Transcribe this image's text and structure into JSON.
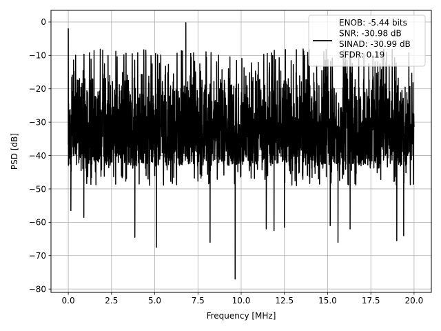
{
  "chart_data": {
    "type": "line",
    "title": "",
    "xlabel": "Frequency [MHz]",
    "ylabel": "PSD [dB]",
    "xlim": [
      -1.0,
      21.0
    ],
    "ylim": [
      -81.0,
      3.5
    ],
    "xticks": [
      0.0,
      2.5,
      5.0,
      7.5,
      10.0,
      12.5,
      15.0,
      17.5,
      20.0
    ],
    "xtick_labels": [
      "0.0",
      "2.5",
      "5.0",
      "7.5",
      "10.0",
      "12.5",
      "15.0",
      "17.5",
      "20.0"
    ],
    "yticks": [
      0,
      -10,
      -20,
      -30,
      -40,
      -50,
      -60,
      -70,
      -80
    ],
    "ytick_labels": [
      "0",
      "−10",
      "−20",
      "−30",
      "−40",
      "−50",
      "−60",
      "−70",
      "−80"
    ],
    "grid": true,
    "legend_position": "top-right",
    "line_color": "#000000",
    "series": [
      {
        "name": "ENOB: -5.44 bits\nSNR: -30.98 dB\nSINAD: -30.99 dB\nSFDR: 0.19",
        "noise_floor_upper_db": -13,
        "noise_floor_band_db": [
          -43,
          -13
        ],
        "noise_peak_max_db": -8,
        "freq_range_mhz": [
          0.0,
          20.0
        ],
        "peaks": [
          {
            "x": 0.0,
            "y": -2
          },
          {
            "x": 6.8,
            "y": -0.2
          }
        ],
        "dips": [
          {
            "x": 0.15,
            "y": -56.5
          },
          {
            "x": 0.9,
            "y": -58.5
          },
          {
            "x": 3.85,
            "y": -64.5
          },
          {
            "x": 5.1,
            "y": -67.5
          },
          {
            "x": 8.2,
            "y": -66.0
          },
          {
            "x": 9.65,
            "y": -77.0
          },
          {
            "x": 11.45,
            "y": -62.0
          },
          {
            "x": 11.9,
            "y": -62.5
          },
          {
            "x": 12.5,
            "y": -61.5
          },
          {
            "x": 15.15,
            "y": -61.0
          },
          {
            "x": 15.6,
            "y": -66.0
          },
          {
            "x": 16.3,
            "y": -62.0
          },
          {
            "x": 19.0,
            "y": -65.5
          },
          {
            "x": 19.4,
            "y": -64.0
          }
        ]
      }
    ],
    "legend": {
      "lines": [
        "ENOB: -5.44 bits",
        "SNR: -30.98 dB",
        "SINAD: -30.99 dB",
        "SFDR: 0.19"
      ]
    }
  }
}
